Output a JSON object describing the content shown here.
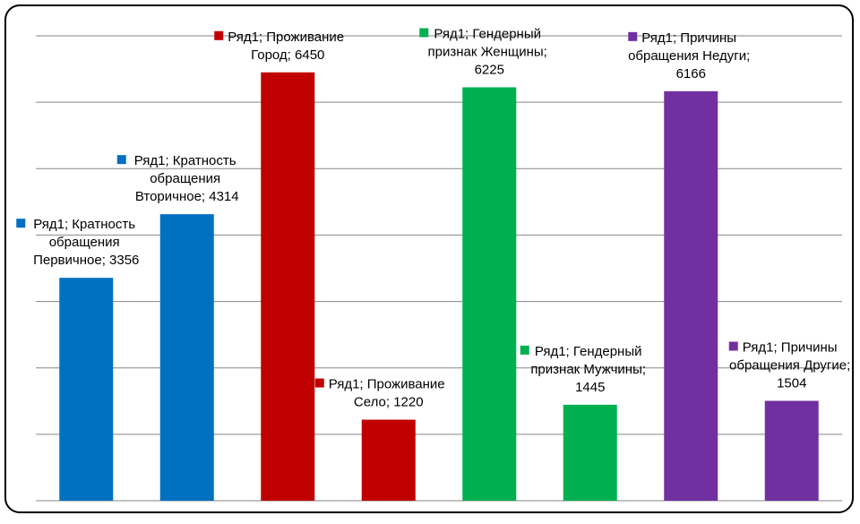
{
  "chart_data": {
    "type": "bar",
    "values": [
      3356,
      4314,
      6450,
      1220,
      6225,
      1445,
      6166,
      1504
    ],
    "value_labels": [
      "Ряд1; Кратность обращения Первичное; 3356",
      "Ряд1; Кратность обращения Вторичное; 4314",
      "Ряд1; Проживание Город; 6450",
      "Ряд1; Проживание Село; 1220",
      "Ряд1; Гендерный признак Женщины; 6225",
      "Ряд1; Гендерный признак Мужчины; 1445",
      "Ряд1; Причины обращения Недуги; 6166",
      "Ряд1; Причины обращения Другие; 1504"
    ],
    "colors": [
      "#0070c0",
      "#0070c0",
      "#c00000",
      "#c00000",
      "#00b050",
      "#00b050",
      "#7030a0",
      "#7030a0"
    ],
    "ylim": [
      0,
      7000
    ],
    "yticks": [
      0,
      1000,
      2000,
      3000,
      4000,
      5000,
      6000,
      7000
    ],
    "grid": true
  }
}
